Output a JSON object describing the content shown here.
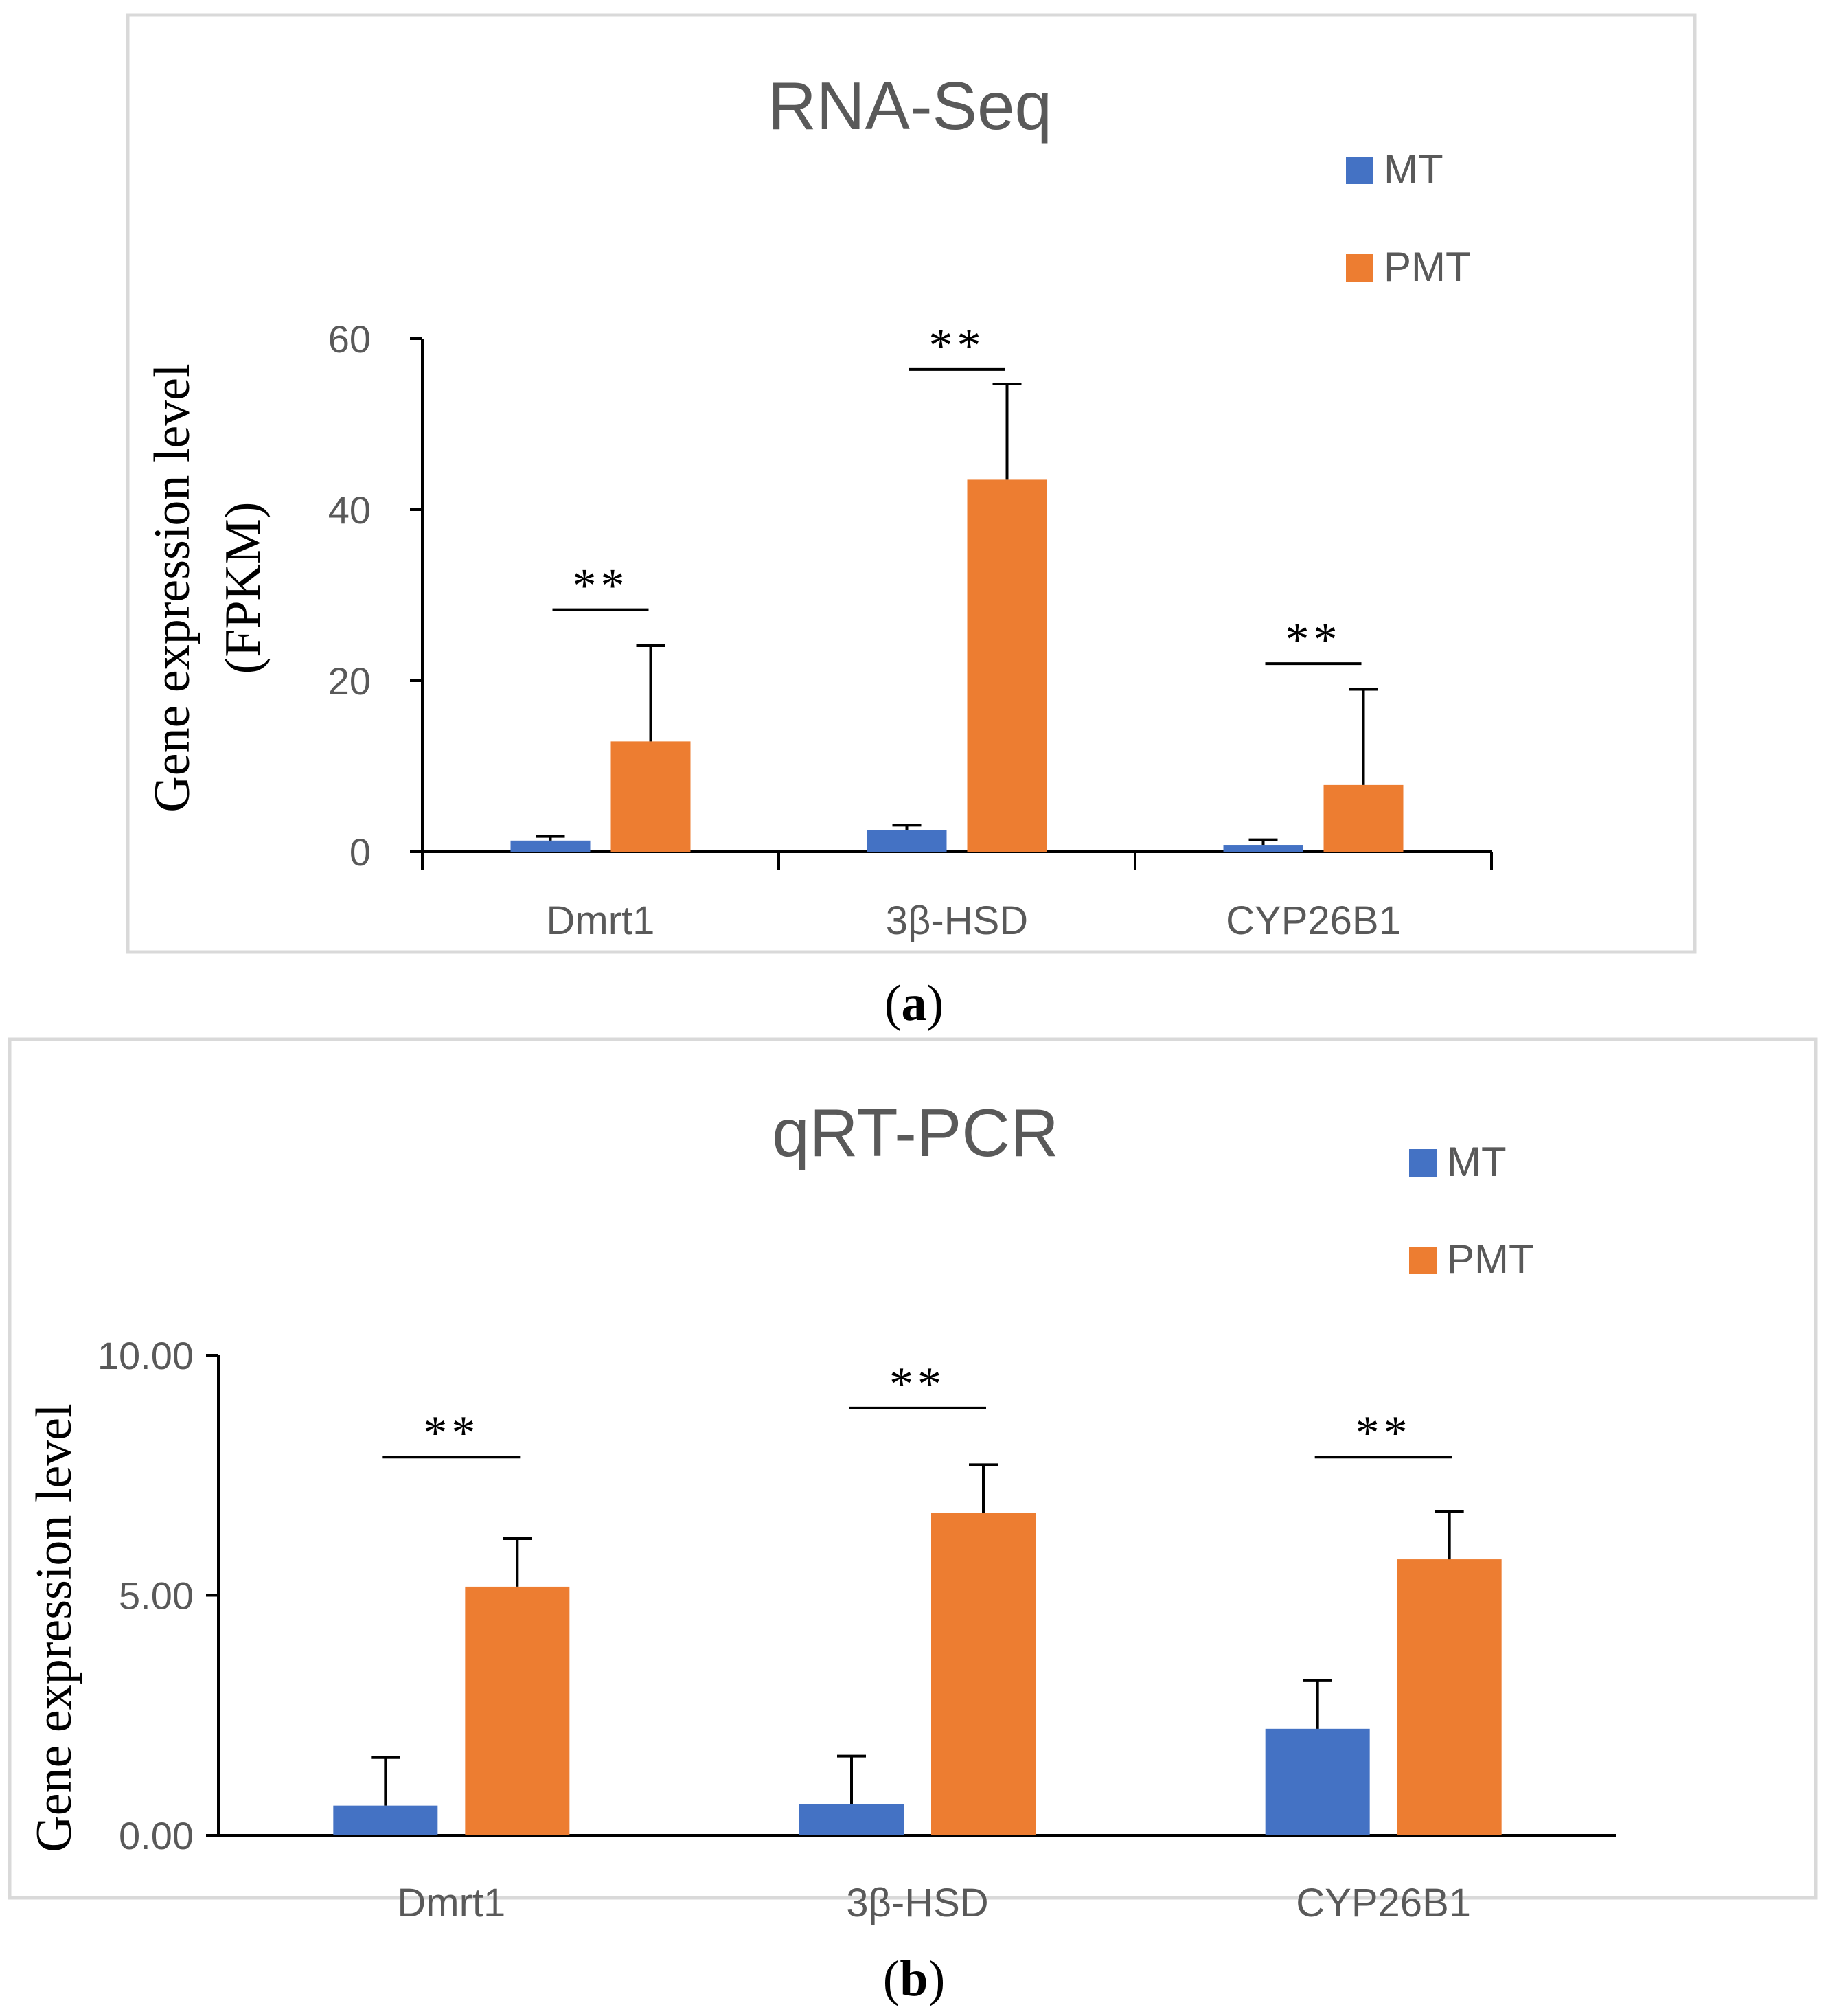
{
  "colors": {
    "mt": "#4472C4",
    "pmt": "#ED7D31",
    "axis": "#000000",
    "frame": "#D9D9D9",
    "text": "#595959"
  },
  "chart_data": [
    {
      "type": "bar",
      "title": "RNA-Seq",
      "panel_label": "a",
      "ylabel_line1": "Gene  expression level",
      "ylabel_line2": "(FPKM)",
      "xlabel": "",
      "categories": [
        "Dmrt1",
        "3β-HSD",
        "CYP26B1"
      ],
      "ylim": [
        0,
        60
      ],
      "yticks": [
        0,
        20,
        40,
        60
      ],
      "ytick_labels": [
        "0",
        "20",
        "40",
        "60"
      ],
      "legend_position": "top-right",
      "series": [
        {
          "name": "MT",
          "values": [
            1.3,
            2.5,
            0.8
          ],
          "errors": [
            0.5,
            0.6,
            0.6
          ]
        },
        {
          "name": "PMT",
          "values": [
            12.9,
            43.5,
            7.8
          ],
          "errors": [
            11.2,
            11.2,
            11.2
          ]
        }
      ],
      "significance": [
        {
          "category_index": 0,
          "label": "**",
          "y": 28.3
        },
        {
          "category_index": 1,
          "label": "**",
          "y": 56.4
        },
        {
          "category_index": 2,
          "label": "**",
          "y": 22.0
        }
      ]
    },
    {
      "type": "bar",
      "title": "qRT-PCR",
      "panel_label": "b",
      "ylabel_line1": "Gene  expression level",
      "xlabel": "",
      "categories": [
        "Dmrt1",
        "3β-HSD",
        "CYP26B1"
      ],
      "ylim": [
        0,
        10
      ],
      "yticks": [
        0,
        5,
        10
      ],
      "ytick_labels": [
        "0.00",
        "5.00",
        "10.00"
      ],
      "legend_position": "top-right",
      "series": [
        {
          "name": "MT",
          "values": [
            0.62,
            0.65,
            2.22
          ],
          "errors": [
            1.0,
            1.0,
            1.0
          ]
        },
        {
          "name": "PMT",
          "values": [
            5.18,
            6.72,
            5.75
          ],
          "errors": [
            1.0,
            1.0,
            1.0
          ]
        }
      ],
      "significance": [
        {
          "category_index": 0,
          "label": "**",
          "y": 7.88
        },
        {
          "category_index": 1,
          "label": "**",
          "y": 8.9
        },
        {
          "category_index": 2,
          "label": "**",
          "y": 7.88
        }
      ]
    }
  ]
}
